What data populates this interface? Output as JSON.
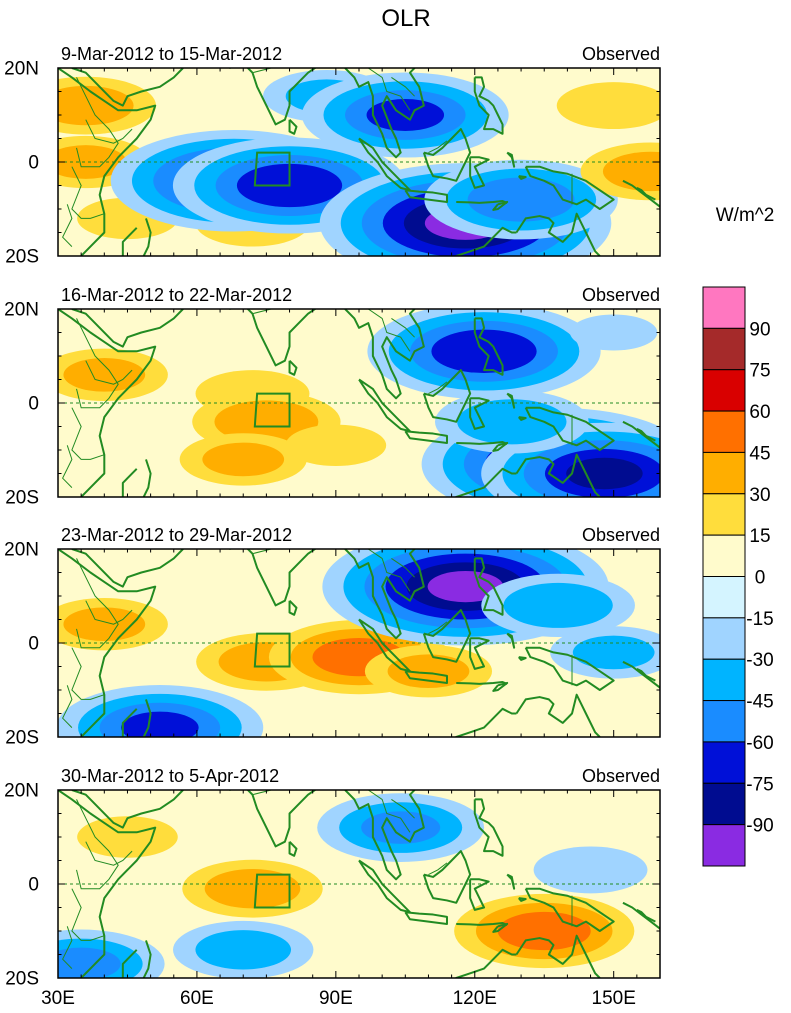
{
  "chart_data": {
    "type": "heatmap",
    "title": "OLR",
    "units": "W/m^2",
    "x_range": [
      30,
      160
    ],
    "y_range": [
      -20,
      20
    ],
    "x_ticks": [
      {
        "value": 30,
        "label": "30E"
      },
      {
        "value": 60,
        "label": "60E"
      },
      {
        "value": 90,
        "label": "90E"
      },
      {
        "value": 120,
        "label": "120E"
      },
      {
        "value": 150,
        "label": "150E"
      }
    ],
    "y_ticks": [
      {
        "value": 20,
        "label": "20N"
      },
      {
        "value": 0,
        "label": "0"
      },
      {
        "value": -20,
        "label": "20S"
      }
    ],
    "colorbar": {
      "levels": [
        "90",
        "75",
        "60",
        "45",
        "30",
        "15",
        "0",
        "-15",
        "-30",
        "-45",
        "-60",
        "-75",
        "-90"
      ],
      "colors": [
        "#ff77c0",
        "#a52a2a",
        "#d90000",
        "#ff7000",
        "#ffae00",
        "#ffdd3c",
        "#fffbcc",
        "#d4f4ff",
        "#a0d4ff",
        "#00b4ff",
        "#1a8cff",
        "#0010d8",
        "#000c90",
        "#8a2be2"
      ]
    },
    "panels": [
      {
        "period": "9-Mar-2012 to 15-Mar-2012",
        "label": "Observed",
        "anomalies": [
          {
            "lon": 36,
            "lat": 12,
            "value": 35
          },
          {
            "lon": 36,
            "lat": 0,
            "value": 30
          },
          {
            "lon": 45,
            "lat": -12,
            "value": 20
          },
          {
            "lon": 72,
            "lat": -13,
            "value": 25
          },
          {
            "lon": 88,
            "lat": 14,
            "value": -30
          },
          {
            "lon": 105,
            "lat": 10,
            "value": -60
          },
          {
            "lon": 68,
            "lat": -4,
            "value": -75
          },
          {
            "lon": 80,
            "lat": -5,
            "value": -70
          },
          {
            "lon": 118,
            "lat": -13,
            "value": -92
          },
          {
            "lon": 130,
            "lat": -8,
            "value": -55
          },
          {
            "lon": 150,
            "lat": 12,
            "value": 25
          },
          {
            "lon": 158,
            "lat": -2,
            "value": 35
          }
        ]
      },
      {
        "period": "16-Mar-2012 to 22-Mar-2012",
        "label": "Observed",
        "anomalies": [
          {
            "lon": 40,
            "lat": 6,
            "value": 30
          },
          {
            "lon": 72,
            "lat": 2,
            "value": 25
          },
          {
            "lon": 75,
            "lat": -4,
            "value": 38
          },
          {
            "lon": 70,
            "lat": -12,
            "value": 30
          },
          {
            "lon": 90,
            "lat": -9,
            "value": 20
          },
          {
            "lon": 122,
            "lat": 11,
            "value": -70
          },
          {
            "lon": 138,
            "lat": -13,
            "value": -85
          },
          {
            "lon": 148,
            "lat": -15,
            "value": -75
          },
          {
            "lon": 128,
            "lat": -4,
            "value": -40
          },
          {
            "lon": 150,
            "lat": 15,
            "value": -15
          }
        ]
      },
      {
        "period": "23-Mar-2012 to 29-Mar-2012",
        "label": "Observed",
        "anomalies": [
          {
            "lon": 40,
            "lat": 4,
            "value": 30
          },
          {
            "lon": 75,
            "lat": -4,
            "value": 35
          },
          {
            "lon": 95,
            "lat": -3,
            "value": 50
          },
          {
            "lon": 110,
            "lat": -6,
            "value": 30
          },
          {
            "lon": 118,
            "lat": 12,
            "value": -90
          },
          {
            "lon": 138,
            "lat": 8,
            "value": -40
          },
          {
            "lon": 150,
            "lat": -2,
            "value": -30
          },
          {
            "lon": 52,
            "lat": -18,
            "value": -60
          }
        ]
      },
      {
        "period": "30-Mar-2012 to 5-Apr-2012",
        "label": "Observed",
        "anomalies": [
          {
            "lon": 45,
            "lat": 10,
            "value": 20
          },
          {
            "lon": 72,
            "lat": -1,
            "value": 35
          },
          {
            "lon": 135,
            "lat": -10,
            "value": 50
          },
          {
            "lon": 104,
            "lat": 12,
            "value": -45
          },
          {
            "lon": 35,
            "lat": -17,
            "value": -45
          },
          {
            "lon": 70,
            "lat": -14,
            "value": -35
          },
          {
            "lon": 145,
            "lat": 3,
            "value": -25
          }
        ]
      }
    ],
    "box_region": {
      "lon": [
        73,
        80
      ],
      "lat": [
        -5,
        2
      ]
    }
  }
}
